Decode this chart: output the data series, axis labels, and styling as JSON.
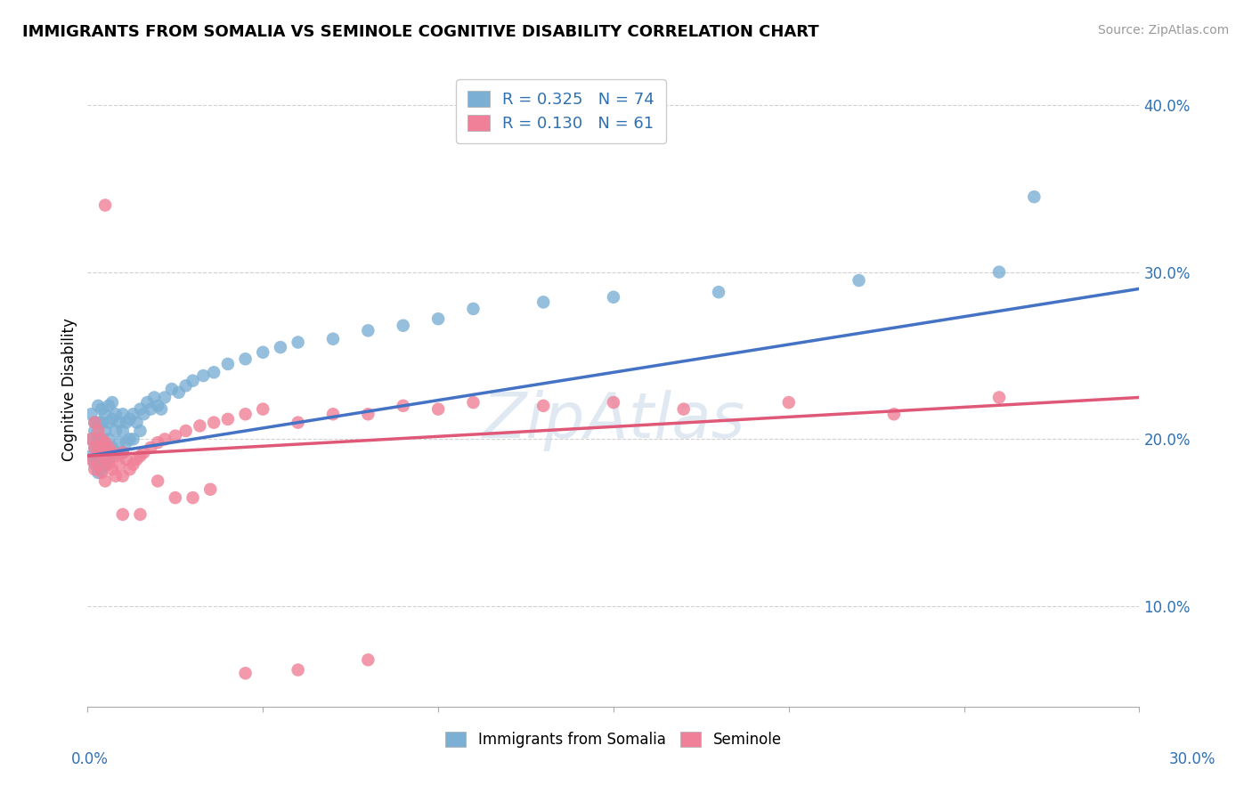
{
  "title": "IMMIGRANTS FROM SOMALIA VS SEMINOLE COGNITIVE DISABILITY CORRELATION CHART",
  "source": "Source: ZipAtlas.com",
  "ylabel": "Cognitive Disability",
  "legend_entries": [
    {
      "label": "R = 0.325   N = 74",
      "color": "#a8c4e0"
    },
    {
      "label": "R = 0.130   N = 61",
      "color": "#f4a8b8"
    }
  ],
  "legend_labels_bottom": [
    "Immigrants from Somalia",
    "Seminole"
  ],
  "watermark": "ZipAtlas",
  "xlim": [
    0.0,
    0.3
  ],
  "ylim": [
    0.04,
    0.42
  ],
  "right_yticks": [
    0.1,
    0.2,
    0.3,
    0.4
  ],
  "somalia_color": "#7bafd4",
  "seminole_color": "#f08098",
  "somalia_line_color": "#4472c4",
  "seminole_line_color": "#e05878",
  "somalia_line": [
    0.19,
    0.29
  ],
  "seminole_line": [
    0.19,
    0.225
  ],
  "somalia_scatter_x": [
    0.001,
    0.001,
    0.001,
    0.002,
    0.002,
    0.002,
    0.002,
    0.003,
    0.003,
    0.003,
    0.003,
    0.003,
    0.004,
    0.004,
    0.004,
    0.004,
    0.004,
    0.005,
    0.005,
    0.005,
    0.005,
    0.006,
    0.006,
    0.006,
    0.006,
    0.007,
    0.007,
    0.007,
    0.008,
    0.008,
    0.008,
    0.009,
    0.009,
    0.01,
    0.01,
    0.01,
    0.011,
    0.011,
    0.012,
    0.012,
    0.013,
    0.013,
    0.014,
    0.015,
    0.015,
    0.016,
    0.017,
    0.018,
    0.019,
    0.02,
    0.021,
    0.022,
    0.024,
    0.026,
    0.028,
    0.03,
    0.033,
    0.036,
    0.04,
    0.045,
    0.05,
    0.055,
    0.06,
    0.07,
    0.08,
    0.09,
    0.1,
    0.11,
    0.13,
    0.15,
    0.18,
    0.22,
    0.26,
    0.27
  ],
  "somalia_scatter_y": [
    0.215,
    0.2,
    0.19,
    0.21,
    0.205,
    0.195,
    0.185,
    0.22,
    0.21,
    0.2,
    0.19,
    0.18,
    0.218,
    0.21,
    0.2,
    0.192,
    0.182,
    0.215,
    0.205,
    0.195,
    0.185,
    0.22,
    0.21,
    0.2,
    0.188,
    0.222,
    0.212,
    0.195,
    0.215,
    0.205,
    0.192,
    0.21,
    0.198,
    0.215,
    0.205,
    0.192,
    0.21,
    0.198,
    0.212,
    0.2,
    0.215,
    0.2,
    0.21,
    0.218,
    0.205,
    0.215,
    0.222,
    0.218,
    0.225,
    0.22,
    0.218,
    0.225,
    0.23,
    0.228,
    0.232,
    0.235,
    0.238,
    0.24,
    0.245,
    0.248,
    0.252,
    0.255,
    0.258,
    0.26,
    0.265,
    0.268,
    0.272,
    0.278,
    0.282,
    0.285,
    0.288,
    0.295,
    0.3,
    0.345
  ],
  "seminole_scatter_x": [
    0.001,
    0.001,
    0.002,
    0.002,
    0.002,
    0.003,
    0.003,
    0.003,
    0.004,
    0.004,
    0.004,
    0.005,
    0.005,
    0.005,
    0.006,
    0.006,
    0.007,
    0.007,
    0.008,
    0.008,
    0.009,
    0.01,
    0.01,
    0.011,
    0.012,
    0.013,
    0.014,
    0.015,
    0.016,
    0.018,
    0.02,
    0.022,
    0.025,
    0.028,
    0.032,
    0.036,
    0.04,
    0.045,
    0.05,
    0.06,
    0.07,
    0.08,
    0.09,
    0.1,
    0.11,
    0.13,
    0.15,
    0.17,
    0.2,
    0.23,
    0.26,
    0.005,
    0.01,
    0.015,
    0.02,
    0.025,
    0.03,
    0.035,
    0.045,
    0.06,
    0.08
  ],
  "seminole_scatter_y": [
    0.2,
    0.188,
    0.21,
    0.195,
    0.182,
    0.205,
    0.195,
    0.185,
    0.2,
    0.192,
    0.18,
    0.198,
    0.188,
    0.175,
    0.195,
    0.185,
    0.192,
    0.182,
    0.19,
    0.178,
    0.185,
    0.192,
    0.178,
    0.188,
    0.182,
    0.185,
    0.188,
    0.19,
    0.192,
    0.195,
    0.198,
    0.2,
    0.202,
    0.205,
    0.208,
    0.21,
    0.212,
    0.215,
    0.218,
    0.21,
    0.215,
    0.215,
    0.22,
    0.218,
    0.222,
    0.22,
    0.222,
    0.218,
    0.222,
    0.215,
    0.225,
    0.34,
    0.155,
    0.155,
    0.175,
    0.165,
    0.165,
    0.17,
    0.06,
    0.062,
    0.068
  ]
}
